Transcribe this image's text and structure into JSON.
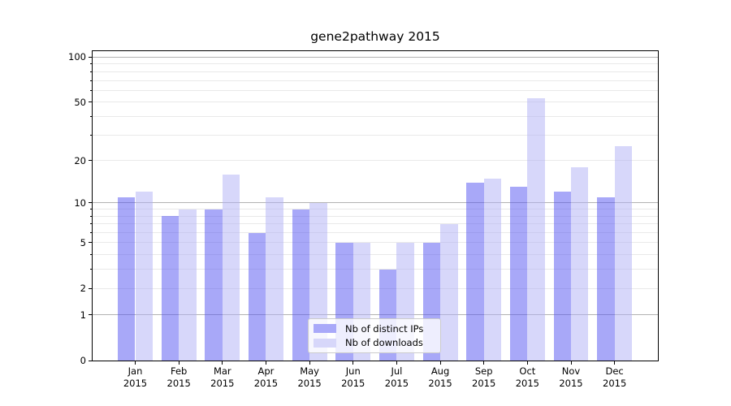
{
  "title": "gene2pathway 2015",
  "legend": {
    "items": [
      {
        "label": "Nb of distinct IPs",
        "color": "#a9a9f9"
      },
      {
        "label": "Nb of downloads",
        "color": "#d7d7fa"
      }
    ]
  },
  "chart_data": {
    "type": "bar",
    "title": "gene2pathway 2015",
    "categories": [
      "Jan 2015",
      "Feb 2015",
      "Mar 2015",
      "Apr 2015",
      "May 2015",
      "Jun 2015",
      "Jul 2015",
      "Aug 2015",
      "Sep 2015",
      "Oct 2015",
      "Nov 2015",
      "Dec 2015"
    ],
    "series": [
      {
        "name": "Nb of distinct IPs",
        "values": [
          11,
          8,
          9,
          6,
          9,
          5,
          3,
          5,
          14,
          13,
          12,
          11
        ],
        "fill": "rgba(82,82,242,0.5)",
        "legend_color": "#a9a9f9"
      },
      {
        "name": "Nb of downloads",
        "values": [
          12,
          9,
          16,
          11,
          10,
          5,
          5,
          7,
          15,
          53,
          18,
          25
        ],
        "fill": "rgba(176,176,245,0.5)",
        "legend_color": "#d7d7fa"
      }
    ],
    "xlabel": "",
    "ylabel": "",
    "yscale": "log1p",
    "ylim": [
      0,
      112
    ],
    "yticks_labeled": [
      0,
      1,
      2,
      5,
      10,
      20,
      50,
      100
    ],
    "gridlines_major": [
      1,
      10,
      100
    ],
    "gridlines_minor": [
      2,
      3,
      4,
      5,
      6,
      7,
      8,
      9,
      20,
      30,
      40,
      50,
      60,
      70,
      80,
      90
    ],
    "grid": true,
    "legend_position": "lower center",
    "colors": {
      "grid_major": "#b3b3b3",
      "grid_minor": "#e9e9e9",
      "axis": "#000000",
      "text": "#000000"
    }
  }
}
